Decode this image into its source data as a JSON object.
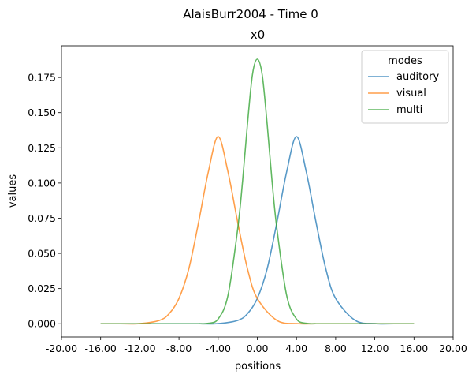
{
  "chart_data": {
    "type": "line",
    "suptitle": "AlaisBurr2004 - Time 0",
    "title": "x0",
    "xlabel": "positions",
    "ylabel": "values",
    "xlim": [
      -20,
      20
    ],
    "ylim": [
      -0.0094,
      0.1975
    ],
    "x_ticks": [
      -20,
      -16,
      -12,
      -8,
      -4,
      0,
      4,
      8,
      12,
      16,
      20
    ],
    "x_tick_labels": [
      "-20.00",
      "-16.00",
      "-12.00",
      "-8.00",
      "-4.00",
      "0.00",
      "4.00",
      "8.00",
      "12.00",
      "16.00",
      "20.00"
    ],
    "y_ticks": [
      0,
      0.025,
      0.05,
      0.075,
      0.1,
      0.125,
      0.15,
      0.175
    ],
    "y_tick_labels": [
      "0.000",
      "0.025",
      "0.050",
      "0.075",
      "0.100",
      "0.125",
      "0.150",
      "0.175"
    ],
    "grid": false,
    "legend": {
      "title": "modes",
      "placement": "top-right"
    },
    "series": [
      {
        "name": "auditory",
        "color": "#1f77b4",
        "x": [
          -16,
          -14,
          -12,
          -10,
          -8,
          -6,
          -4,
          -2,
          -1,
          0,
          1,
          2,
          3,
          4,
          5,
          6,
          7,
          8,
          10,
          12,
          14,
          16
        ],
        "y": [
          0.0,
          0.0,
          0.0,
          0.0,
          0.0,
          0.0,
          0.0001,
          0.0024,
          0.0072,
          0.018,
          0.0389,
          0.072,
          0.108,
          0.133,
          0.108,
          0.072,
          0.0389,
          0.018,
          0.0024,
          0.0001,
          0.0,
          0.0
        ]
      },
      {
        "name": "visual",
        "color": "#ff7f0e",
        "x": [
          -16,
          -14,
          -12,
          -10,
          -9,
          -8,
          -7,
          -6,
          -5,
          -4,
          -3,
          -2,
          -1,
          0,
          2,
          4,
          6,
          8,
          10,
          12,
          14,
          16
        ],
        "y": [
          0.0,
          0.0,
          0.0001,
          0.0024,
          0.0072,
          0.018,
          0.0389,
          0.072,
          0.108,
          0.133,
          0.108,
          0.072,
          0.0389,
          0.018,
          0.0024,
          0.0001,
          0.0,
          0.0,
          0.0,
          0.0,
          0.0,
          0.0
        ]
      },
      {
        "name": "multi",
        "color": "#2ca02c",
        "x": [
          -16,
          -12,
          -8,
          -6,
          -5,
          -4,
          -3,
          -2,
          -1.5,
          -1,
          -0.5,
          0,
          0.5,
          1,
          1.5,
          2,
          3,
          4,
          5,
          6,
          8,
          12,
          16
        ],
        "y": [
          0.0,
          0.0,
          0.0,
          0.0,
          0.0003,
          0.0034,
          0.0201,
          0.0677,
          0.1017,
          0.1423,
          0.1769,
          0.188,
          0.1769,
          0.1423,
          0.1017,
          0.0677,
          0.0201,
          0.0034,
          0.0003,
          0.0,
          0.0,
          0.0,
          0.0
        ]
      }
    ]
  }
}
